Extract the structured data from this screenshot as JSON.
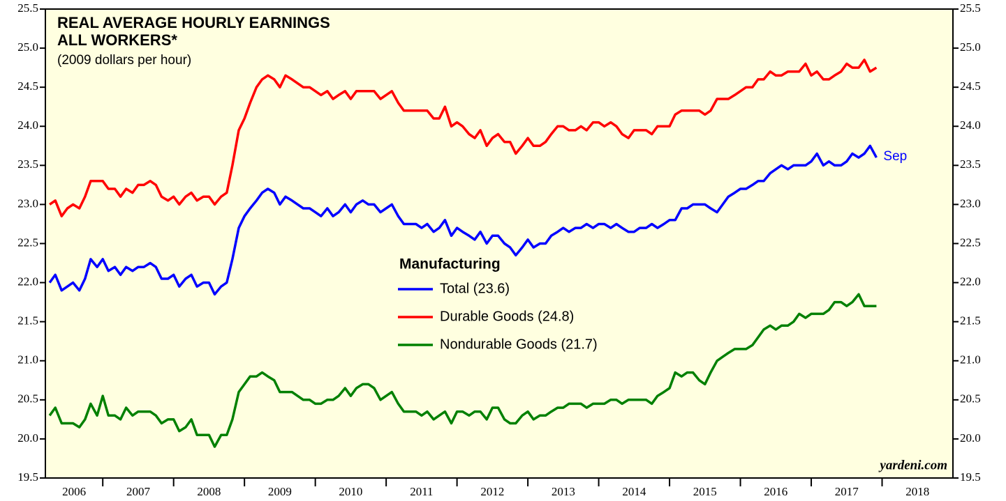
{
  "chart_data": {
    "type": "line",
    "title": [
      "REAL AVERAGE HOURLY EARNINGS",
      "ALL WORKERS*"
    ],
    "subtitle": "(2009 dollars per hour)",
    "legend_title": "Manufacturing",
    "annotation": "Sep",
    "source": "yardeni.com",
    "x": [
      2006.25,
      2006.33,
      2006.42,
      2006.5,
      2006.58,
      2006.67,
      2006.75,
      2006.83,
      2006.92,
      2007,
      2007.08,
      2007.17,
      2007.25,
      2007.33,
      2007.42,
      2007.5,
      2007.58,
      2007.67,
      2007.75,
      2007.83,
      2007.92,
      2008,
      2008.08,
      2008.17,
      2008.25,
      2008.33,
      2008.42,
      2008.5,
      2008.58,
      2008.67,
      2008.75,
      2008.83,
      2008.92,
      2009,
      2009.08,
      2009.17,
      2009.25,
      2009.33,
      2009.42,
      2009.5,
      2009.58,
      2009.67,
      2009.75,
      2009.83,
      2009.92,
      2010,
      2010.08,
      2010.17,
      2010.25,
      2010.33,
      2010.42,
      2010.5,
      2010.58,
      2010.67,
      2010.75,
      2010.83,
      2010.92,
      2011,
      2011.08,
      2011.17,
      2011.25,
      2011.33,
      2011.42,
      2011.5,
      2011.58,
      2011.67,
      2011.75,
      2011.83,
      2011.92,
      2012,
      2012.08,
      2012.17,
      2012.25,
      2012.33,
      2012.42,
      2012.5,
      2012.58,
      2012.67,
      2012.75,
      2012.83,
      2012.92,
      2013,
      2013.08,
      2013.17,
      2013.25,
      2013.33,
      2013.42,
      2013.5,
      2013.58,
      2013.67,
      2013.75,
      2013.83,
      2013.92,
      2014,
      2014.08,
      2014.17,
      2014.25,
      2014.33,
      2014.42,
      2014.5,
      2014.58,
      2014.67,
      2014.75,
      2014.83,
      2014.92,
      2015,
      2015.08,
      2015.17,
      2015.25,
      2015.33,
      2015.42,
      2015.5,
      2015.58,
      2015.67,
      2015.75,
      2015.83,
      2015.92,
      2016,
      2016.08,
      2016.17,
      2016.25,
      2016.33,
      2016.42,
      2016.5,
      2016.58,
      2016.67,
      2016.75,
      2016.83,
      2016.92,
      2017,
      2017.08,
      2017.17,
      2017.25,
      2017.33,
      2017.42,
      2017.5,
      2017.58,
      2017.67,
      2017.75,
      2017.83,
      2017.92
    ],
    "series": [
      {
        "name": "Total (23.6)",
        "color": "#0000ff",
        "values": [
          22.0,
          22.1,
          21.9,
          21.95,
          22.0,
          21.9,
          22.05,
          22.3,
          22.2,
          22.3,
          22.15,
          22.2,
          22.1,
          22.2,
          22.15,
          22.2,
          22.2,
          22.25,
          22.2,
          22.05,
          22.05,
          22.1,
          21.95,
          22.05,
          22.1,
          21.95,
          22.0,
          22.0,
          21.85,
          21.95,
          22.0,
          22.3,
          22.7,
          22.85,
          22.95,
          23.05,
          23.15,
          23.2,
          23.15,
          23.0,
          23.1,
          23.05,
          23.0,
          22.95,
          22.95,
          22.9,
          22.85,
          22.95,
          22.85,
          22.9,
          23.0,
          22.9,
          23.0,
          23.05,
          23.0,
          23.0,
          22.9,
          22.95,
          23.0,
          22.85,
          22.75,
          22.75,
          22.75,
          22.7,
          22.75,
          22.65,
          22.7,
          22.8,
          22.6,
          22.7,
          22.65,
          22.6,
          22.55,
          22.65,
          22.5,
          22.6,
          22.6,
          22.5,
          22.45,
          22.35,
          22.45,
          22.55,
          22.45,
          22.5,
          22.5,
          22.6,
          22.65,
          22.7,
          22.65,
          22.7,
          22.7,
          22.75,
          22.7,
          22.75,
          22.75,
          22.7,
          22.75,
          22.7,
          22.65,
          22.65,
          22.7,
          22.7,
          22.75,
          22.7,
          22.75,
          22.8,
          22.8,
          22.95,
          22.95,
          23.0,
          23.0,
          23.0,
          22.95,
          22.9,
          23.0,
          23.1,
          23.15,
          23.2,
          23.2,
          23.25,
          23.3,
          23.3,
          23.4,
          23.45,
          23.5,
          23.45,
          23.5,
          23.5,
          23.5,
          23.55,
          23.65,
          23.5,
          23.55,
          23.5,
          23.5,
          23.55,
          23.65,
          23.6,
          23.65,
          23.75,
          23.6
        ]
      },
      {
        "name": "Durable Goods (24.8)",
        "color": "#ff0000",
        "values": [
          23.0,
          23.05,
          22.85,
          22.95,
          23.0,
          22.95,
          23.1,
          23.3,
          23.3,
          23.3,
          23.2,
          23.2,
          23.1,
          23.2,
          23.15,
          23.25,
          23.25,
          23.3,
          23.25,
          23.1,
          23.05,
          23.1,
          23.0,
          23.1,
          23.15,
          23.05,
          23.1,
          23.1,
          23.0,
          23.1,
          23.15,
          23.5,
          23.95,
          24.1,
          24.3,
          24.5,
          24.6,
          24.65,
          24.6,
          24.5,
          24.65,
          24.6,
          24.55,
          24.5,
          24.5,
          24.45,
          24.4,
          24.45,
          24.35,
          24.4,
          24.45,
          24.35,
          24.45,
          24.45,
          24.45,
          24.45,
          24.35,
          24.4,
          24.45,
          24.3,
          24.2,
          24.2,
          24.2,
          24.2,
          24.2,
          24.1,
          24.1,
          24.25,
          24.0,
          24.05,
          24.0,
          23.9,
          23.85,
          23.95,
          23.75,
          23.85,
          23.9,
          23.8,
          23.8,
          23.65,
          23.75,
          23.85,
          23.75,
          23.75,
          23.8,
          23.9,
          24.0,
          24.0,
          23.95,
          23.95,
          24.0,
          23.95,
          24.05,
          24.05,
          24.0,
          24.05,
          24.0,
          23.9,
          23.85,
          23.95,
          23.95,
          23.95,
          23.9,
          24.0,
          24.0,
          24.0,
          24.15,
          24.2,
          24.2,
          24.2,
          24.2,
          24.15,
          24.2,
          24.35,
          24.35,
          24.35,
          24.4,
          24.45,
          24.5,
          24.5,
          24.6,
          24.6,
          24.7,
          24.65,
          24.65,
          24.7,
          24.7,
          24.7,
          24.8,
          24.65,
          24.7,
          24.6,
          24.6,
          24.65,
          24.7,
          24.8,
          24.75,
          24.75,
          24.85,
          24.7,
          24.75
        ]
      },
      {
        "name": "Nondurable Goods (21.7)",
        "color": "#008000",
        "values": [
          20.3,
          20.4,
          20.2,
          20.2,
          20.2,
          20.15,
          20.25,
          20.45,
          20.3,
          20.55,
          20.3,
          20.3,
          20.25,
          20.4,
          20.3,
          20.35,
          20.35,
          20.35,
          20.3,
          20.2,
          20.25,
          20.25,
          20.1,
          20.15,
          20.25,
          20.05,
          20.05,
          20.05,
          19.9,
          20.05,
          20.05,
          20.25,
          20.6,
          20.7,
          20.8,
          20.8,
          20.85,
          20.8,
          20.75,
          20.6,
          20.6,
          20.6,
          20.55,
          20.5,
          20.5,
          20.45,
          20.45,
          20.5,
          20.5,
          20.55,
          20.65,
          20.55,
          20.65,
          20.7,
          20.7,
          20.65,
          20.5,
          20.55,
          20.6,
          20.45,
          20.35,
          20.35,
          20.35,
          20.3,
          20.35,
          20.25,
          20.3,
          20.35,
          20.2,
          20.35,
          20.35,
          20.3,
          20.35,
          20.35,
          20.25,
          20.4,
          20.4,
          20.25,
          20.2,
          20.2,
          20.3,
          20.35,
          20.25,
          20.3,
          20.3,
          20.35,
          20.4,
          20.4,
          20.45,
          20.45,
          20.45,
          20.4,
          20.45,
          20.45,
          20.45,
          20.5,
          20.5,
          20.45,
          20.5,
          20.5,
          20.5,
          20.5,
          20.45,
          20.55,
          20.6,
          20.65,
          20.85,
          20.8,
          20.85,
          20.85,
          20.75,
          20.7,
          20.85,
          21.0,
          21.05,
          21.1,
          21.15,
          21.15,
          21.15,
          21.2,
          21.3,
          21.4,
          21.45,
          21.4,
          21.45,
          21.45,
          21.5,
          21.6,
          21.55,
          21.6,
          21.6,
          21.6,
          21.65,
          21.75,
          21.75,
          21.7,
          21.75,
          21.85,
          21.7,
          21.7,
          21.7
        ]
      }
    ],
    "xlim": [
      2006.19,
      2019
    ],
    "xticks": [
      2006,
      2007,
      2008,
      2009,
      2010,
      2011,
      2012,
      2013,
      2014,
      2015,
      2016,
      2017,
      2018
    ],
    "ylim": [
      19.5,
      25.5
    ],
    "yticks": [
      19.5,
      {
        "value": 20,
        "label": "20.0"
      },
      20.5,
      {
        "value": 21,
        "label": "21.0"
      },
      21.5,
      {
        "value": 22,
        "label": "22.0"
      },
      22.5,
      {
        "value": 23,
        "label": "23.0"
      },
      23.5,
      {
        "value": 24,
        "label": "24.0"
      },
      24.5,
      {
        "value": 25,
        "label": "25.0"
      },
      25.5
    ],
    "background": "#ffffe0"
  }
}
